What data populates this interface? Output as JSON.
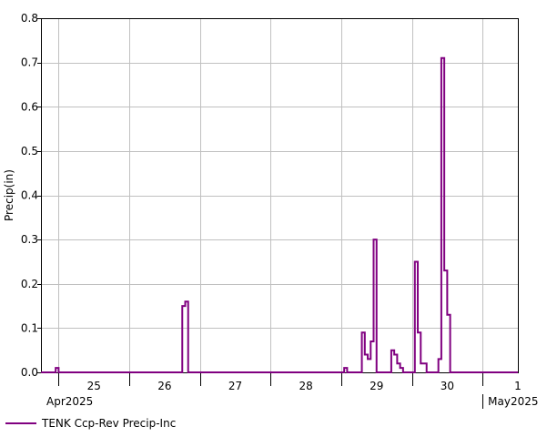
{
  "chart_data": {
    "type": "line",
    "step": true,
    "title": "",
    "ylabel": "Precip(in)",
    "xlabel": "",
    "ylim": [
      0,
      0.8
    ],
    "yticks": [
      "0.0",
      "0.1",
      "0.2",
      "0.3",
      "0.4",
      "0.5",
      "0.6",
      "0.7",
      "0.8"
    ],
    "xlim": [
      "2025-04-24 18:00",
      "2025-05-01 12:00"
    ],
    "x_day_labels": [
      {
        "label": "25",
        "date": "2025-04-25"
      },
      {
        "label": "26",
        "date": "2025-04-26"
      },
      {
        "label": "27",
        "date": "2025-04-27"
      },
      {
        "label": "28",
        "date": "2025-04-28"
      },
      {
        "label": "29",
        "date": "2025-04-29"
      },
      {
        "label": "30",
        "date": "2025-04-30"
      },
      {
        "label": "1",
        "date": "2025-05-01"
      }
    ],
    "x_month_labels": [
      {
        "label": "Apr2025",
        "date": "2025-04-24 18:00"
      },
      {
        "label": "May2025",
        "date": "2025-05-01 00:00"
      }
    ],
    "grid": true,
    "legend_position": "bottom-left",
    "series": [
      {
        "name": "TENK Ccp-Rev Precip-Inc",
        "color": "#800080",
        "points": [
          [
            "2025-04-24 18:00",
            0.0
          ],
          [
            "2025-04-24 23:00",
            0.01
          ],
          [
            "2025-04-25 00:00",
            0.0
          ],
          [
            "2025-04-26 18:00",
            0.15
          ],
          [
            "2025-04-26 19:00",
            0.16
          ],
          [
            "2025-04-26 20:00",
            0.0
          ],
          [
            "2025-04-29 01:00",
            0.01
          ],
          [
            "2025-04-29 02:00",
            0.0
          ],
          [
            "2025-04-29 07:00",
            0.09
          ],
          [
            "2025-04-29 08:00",
            0.04
          ],
          [
            "2025-04-29 09:00",
            0.03
          ],
          [
            "2025-04-29 10:00",
            0.07
          ],
          [
            "2025-04-29 11:00",
            0.3
          ],
          [
            "2025-04-29 12:00",
            0.0
          ],
          [
            "2025-04-29 17:00",
            0.05
          ],
          [
            "2025-04-29 18:00",
            0.04
          ],
          [
            "2025-04-29 19:00",
            0.02
          ],
          [
            "2025-04-29 20:00",
            0.01
          ],
          [
            "2025-04-29 21:00",
            0.0
          ],
          [
            "2025-04-30 00:00",
            0.0
          ],
          [
            "2025-04-30 01:00",
            0.25
          ],
          [
            "2025-04-30 02:00",
            0.09
          ],
          [
            "2025-04-30 03:00",
            0.02
          ],
          [
            "2025-04-30 05:00",
            0.0
          ],
          [
            "2025-04-30 09:00",
            0.03
          ],
          [
            "2025-04-30 10:00",
            0.71
          ],
          [
            "2025-04-30 11:00",
            0.23
          ],
          [
            "2025-04-30 12:00",
            0.13
          ],
          [
            "2025-04-30 13:00",
            0.0
          ],
          [
            "2025-05-01 12:00",
            0.0
          ]
        ]
      }
    ]
  }
}
